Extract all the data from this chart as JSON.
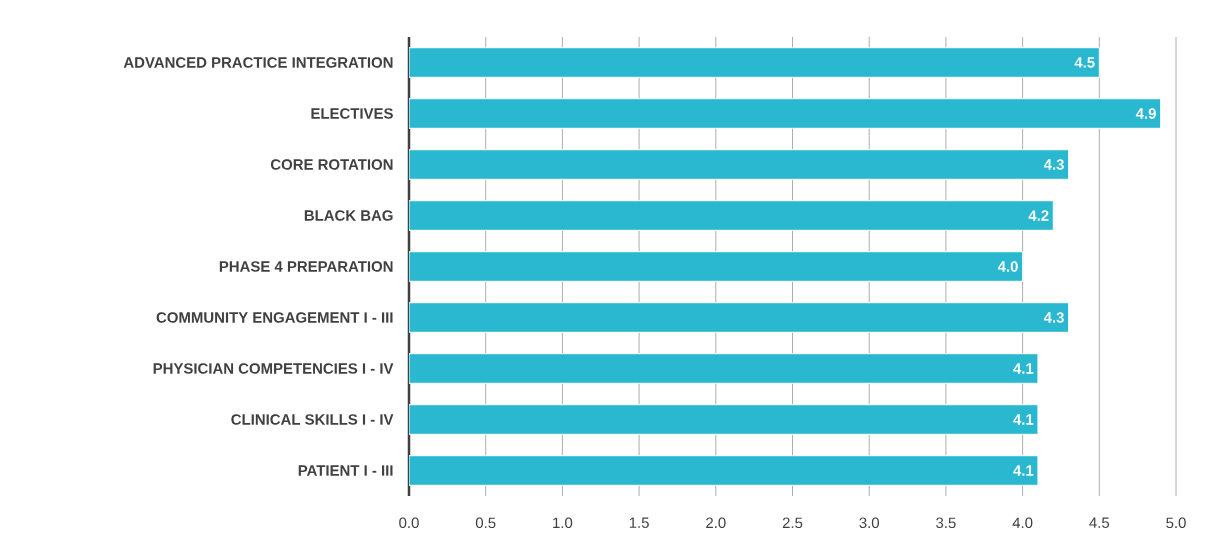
{
  "chart_data": {
    "type": "bar",
    "orientation": "horizontal",
    "categories": [
      "ADVANCED PRACTICE INTEGRATION",
      "ELECTIVES",
      "CORE ROTATION",
      "BLACK BAG",
      "PHASE 4 PREPARATION",
      "COMMUNITY ENGAGEMENT I - III",
      "PHYSICIAN COMPETENCIES I - IV",
      "CLINICAL SKILLS I - IV",
      "PATIENT I - III"
    ],
    "values": [
      4.5,
      4.9,
      4.3,
      4.2,
      4.0,
      4.3,
      4.1,
      4.1,
      4.1
    ],
    "value_labels": [
      "4.5",
      "4.9",
      "4.3",
      "4.2",
      "4.0",
      "4.3",
      "4.1",
      "4.1",
      "4.1"
    ],
    "color": "#29b8d0",
    "xlim": [
      0,
      5
    ],
    "xticks": [
      {
        "value": 0,
        "label": "0.0"
      },
      {
        "value": 0.5,
        "label": "0.5"
      },
      {
        "value": 1,
        "label": "1.0"
      },
      {
        "value": 1.5,
        "label": "1.5"
      },
      {
        "value": 2,
        "label": "2.0"
      },
      {
        "value": 2.5,
        "label": "2.5"
      },
      {
        "value": 3,
        "label": "3.0"
      },
      {
        "value": 3.5,
        "label": "3.5"
      },
      {
        "value": 4,
        "label": "4.0"
      },
      {
        "value": 4.5,
        "label": "4.5"
      },
      {
        "value": 5,
        "label": "5.0"
      }
    ],
    "grid": "x"
  }
}
